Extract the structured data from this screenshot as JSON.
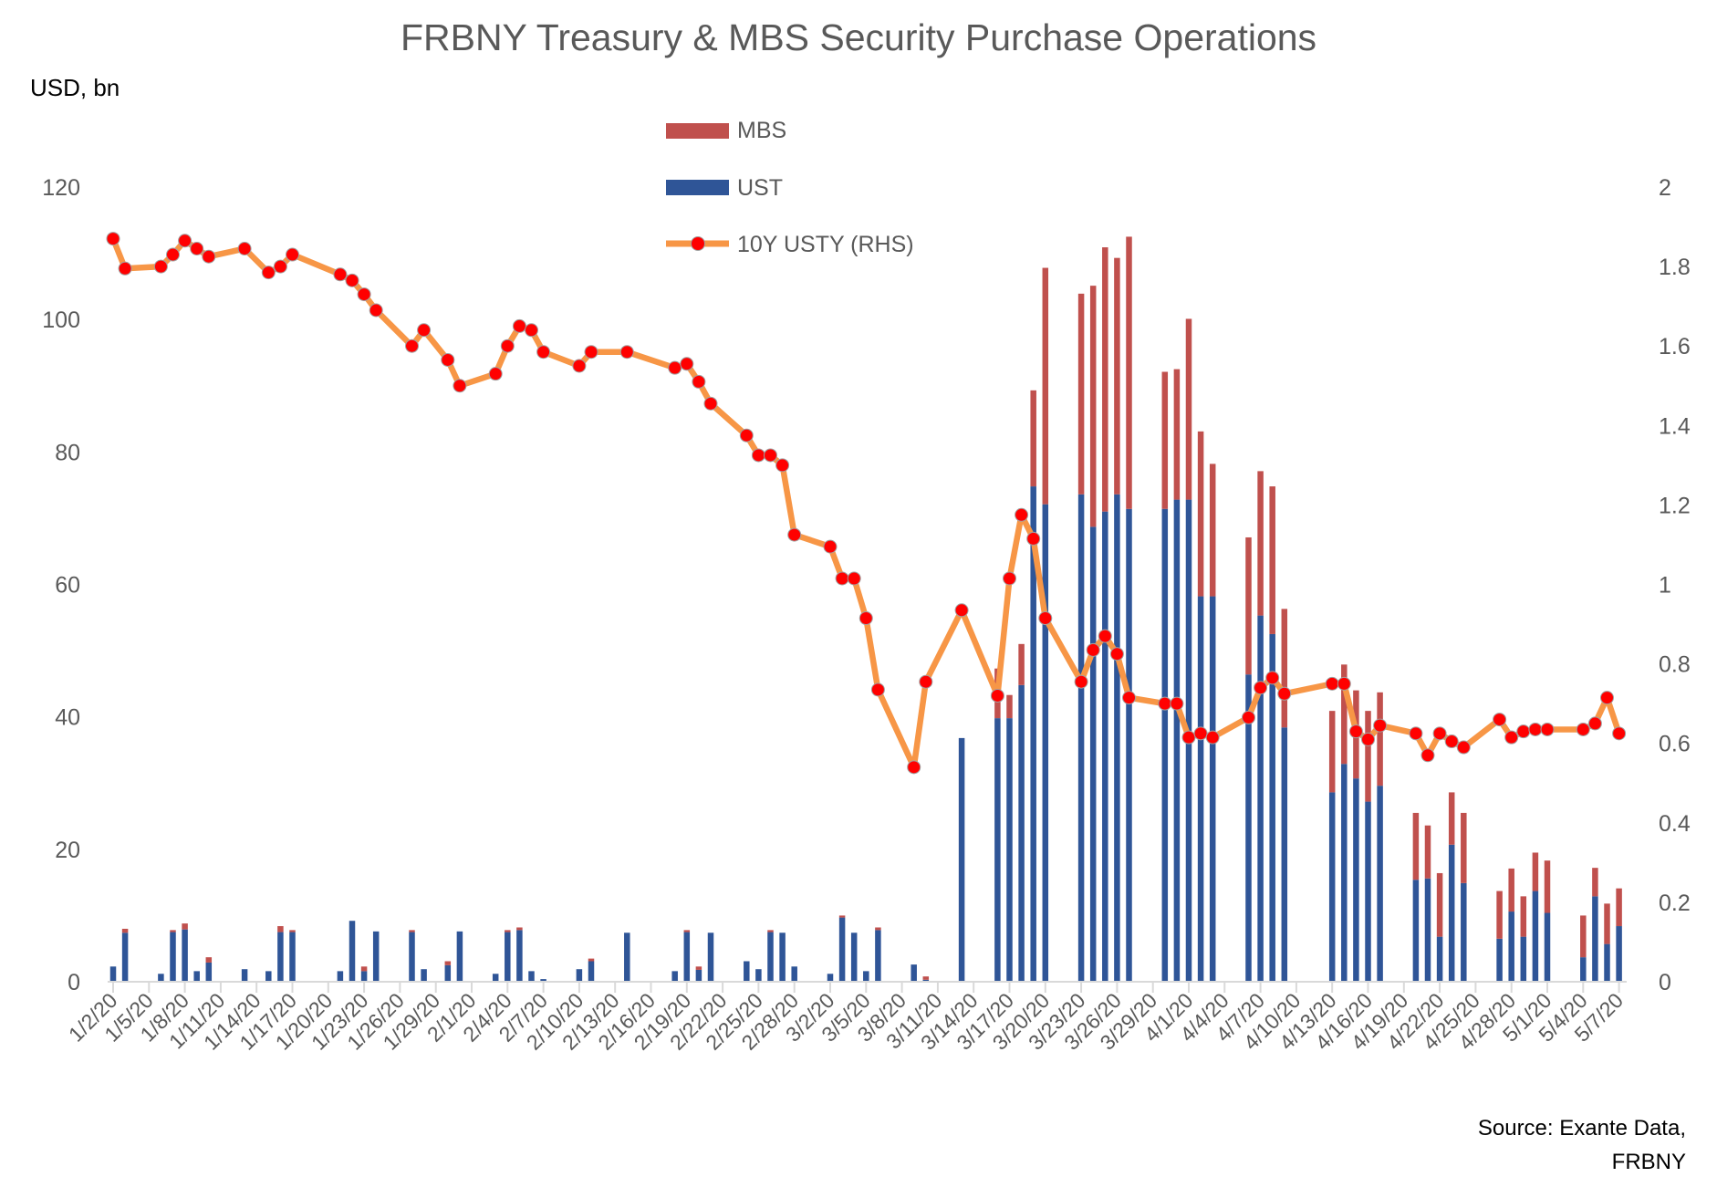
{
  "chart_data": {
    "type": "bar+line",
    "title": "FRBNY Treasury & MBS Security Purchase Operations",
    "ylabel": "USD, bn",
    "ylim": [
      0,
      120
    ],
    "y_ticks": [
      "0",
      "20",
      "40",
      "60",
      "80",
      "100",
      "120"
    ],
    "y2lim": [
      0,
      2
    ],
    "y2_ticks": [
      "0",
      "0.2",
      "0.4",
      "0.6",
      "0.8",
      "1",
      "1.2",
      "1.4",
      "1.6",
      "1.8",
      "2"
    ],
    "x_ticks": [
      "1/2/20",
      "1/5/20",
      "1/8/20",
      "1/11/20",
      "1/14/20",
      "1/17/20",
      "1/20/20",
      "1/23/20",
      "1/26/20",
      "1/29/20",
      "2/1/20",
      "2/4/20",
      "2/7/20",
      "2/10/20",
      "2/13/20",
      "2/16/20",
      "2/19/20",
      "2/22/20",
      "2/25/20",
      "2/28/20",
      "3/2/20",
      "3/5/20",
      "3/8/20",
      "3/11/20",
      "3/14/20",
      "3/17/20",
      "3/20/20",
      "3/23/20",
      "3/26/20",
      "3/29/20",
      "4/1/20",
      "4/4/20",
      "4/7/20",
      "4/10/20",
      "4/13/20",
      "4/16/20",
      "4/19/20",
      "4/22/20",
      "4/25/20",
      "4/28/20",
      "5/1/20",
      "5/4/20",
      "5/7/20"
    ],
    "grid": false,
    "legend_placement": "top-center",
    "colors": {
      "MBS": "#C0504D",
      "UST": "#2F5597",
      "line": "#F79646",
      "marker": "#FF0000"
    },
    "series_names": {
      "mbs": "MBS",
      "ust": "UST",
      "yield": "10Y USTY (RHS)"
    },
    "dates": [
      "1/2/20",
      "1/3/20",
      "1/6/20",
      "1/7/20",
      "1/8/20",
      "1/9/20",
      "1/10/20",
      "1/13/20",
      "1/15/20",
      "1/16/20",
      "1/17/20",
      "1/21/20",
      "1/22/20",
      "1/23/20",
      "1/24/20",
      "1/27/20",
      "1/28/20",
      "1/30/20",
      "1/31/20",
      "2/3/20",
      "2/4/20",
      "2/5/20",
      "2/6/20",
      "2/7/20",
      "2/10/20",
      "2/11/20",
      "2/14/20",
      "2/18/20",
      "2/19/20",
      "2/20/20",
      "2/21/20",
      "2/24/20",
      "2/25/20",
      "2/26/20",
      "2/27/20",
      "2/28/20",
      "3/2/20",
      "3/3/20",
      "3/4/20",
      "3/5/20",
      "3/6/20",
      "3/9/20",
      "3/10/20",
      "3/13/20",
      "3/16/20",
      "3/17/20",
      "3/18/20",
      "3/19/20",
      "3/20/20",
      "3/23/20",
      "3/24/20",
      "3/25/20",
      "3/26/20",
      "3/27/20",
      "3/30/20",
      "3/31/20",
      "4/1/20",
      "4/2/20",
      "4/3/20",
      "4/6/20",
      "4/7/20",
      "4/8/20",
      "4/9/20",
      "4/13/20",
      "4/14/20",
      "4/15/20",
      "4/16/20",
      "4/17/20",
      "4/20/20",
      "4/21/20",
      "4/22/20",
      "4/23/20",
      "4/24/20",
      "4/27/20",
      "4/28/20",
      "4/29/20",
      "4/30/20",
      "5/1/20",
      "5/4/20",
      "5/5/20",
      "5/6/20",
      "5/7/20"
    ],
    "ust": [
      2.3,
      7.4,
      1.2,
      7.5,
      7.9,
      1.6,
      2.9,
      1.9,
      1.6,
      7.5,
      7.5,
      1.6,
      9.2,
      1.6,
      7.6,
      7.5,
      1.9,
      2.5,
      7.6,
      1.2,
      7.5,
      7.8,
      1.6,
      0.4,
      1.9,
      3.1,
      7.4,
      1.6,
      7.5,
      1.8,
      7.4,
      3.1,
      1.9,
      7.5,
      7.4,
      2.3,
      1.2,
      9.7,
      7.4,
      1.6,
      7.8,
      2.6,
      0.3,
      36.8,
      39.8,
      39.8,
      44.8,
      74.8,
      72.1,
      73.6,
      68.7,
      71.0,
      73.6,
      71.4,
      71.4,
      72.8,
      72.8,
      58.2,
      58.2,
      46.4,
      55.3,
      52.5,
      38.4,
      28.6,
      32.9,
      30.7,
      27.2,
      29.6,
      15.4,
      15.6,
      6.8,
      20.7,
      14.9,
      6.5,
      10.6,
      6.8,
      13.7,
      10.4,
      3.7,
      12.9,
      5.7,
      8.4
    ],
    "mbs": [
      0,
      0.6,
      0,
      0.3,
      0.9,
      0,
      0.8,
      0,
      0,
      0.9,
      0.3,
      0,
      0,
      0.7,
      0,
      0.3,
      0,
      0.6,
      0,
      0,
      0.3,
      0.4,
      0,
      0,
      0,
      0.4,
      0,
      0,
      0.3,
      0.5,
      0,
      0,
      0,
      0.3,
      0,
      0,
      0,
      0.3,
      0,
      0,
      0.4,
      0,
      0.5,
      0,
      7.5,
      3.5,
      6.2,
      14.5,
      35.7,
      30.3,
      36.4,
      39.9,
      35.7,
      41.1,
      20.7,
      19.7,
      27.3,
      24.9,
      20.0,
      20.7,
      21.8,
      22.3,
      17.9,
      12.3,
      15.0,
      13.3,
      13.7,
      14.1,
      10.1,
      8.0,
      9.6,
      7.9,
      10.6,
      7.2,
      6.5,
      6.1,
      5.8,
      7.9,
      6.3,
      4.3,
      6.1,
      5.7
    ],
    "yield": [
      1.87,
      1.795,
      1.8,
      1.83,
      1.865,
      1.845,
      1.825,
      1.845,
      1.785,
      1.8,
      1.83,
      1.78,
      1.765,
      1.73,
      1.69,
      1.6,
      1.64,
      1.565,
      1.5,
      1.53,
      1.6,
      1.65,
      1.64,
      1.585,
      1.55,
      1.585,
      1.585,
      1.545,
      1.555,
      1.51,
      1.455,
      1.375,
      1.325,
      1.325,
      1.3,
      1.125,
      1.095,
      1.015,
      1.015,
      0.915,
      0.735,
      0.54,
      0.755,
      0.935,
      0.72,
      1.015,
      1.175,
      1.115,
      0.915,
      0.755,
      0.835,
      0.87,
      0.825,
      0.715,
      0.7,
      0.7,
      0.615,
      0.625,
      0.615,
      0.665,
      0.74,
      0.765,
      0.725,
      0.75,
      0.75,
      0.63,
      0.61,
      0.645,
      0.625,
      0.57,
      0.625,
      0.605,
      0.59,
      0.66,
      0.615,
      0.63,
      0.635,
      0.635,
      0.635,
      0.65,
      0.715,
      0.625
    ]
  },
  "source": {
    "line1": "Source: Exante Data,",
    "line2": "FRBNY"
  }
}
